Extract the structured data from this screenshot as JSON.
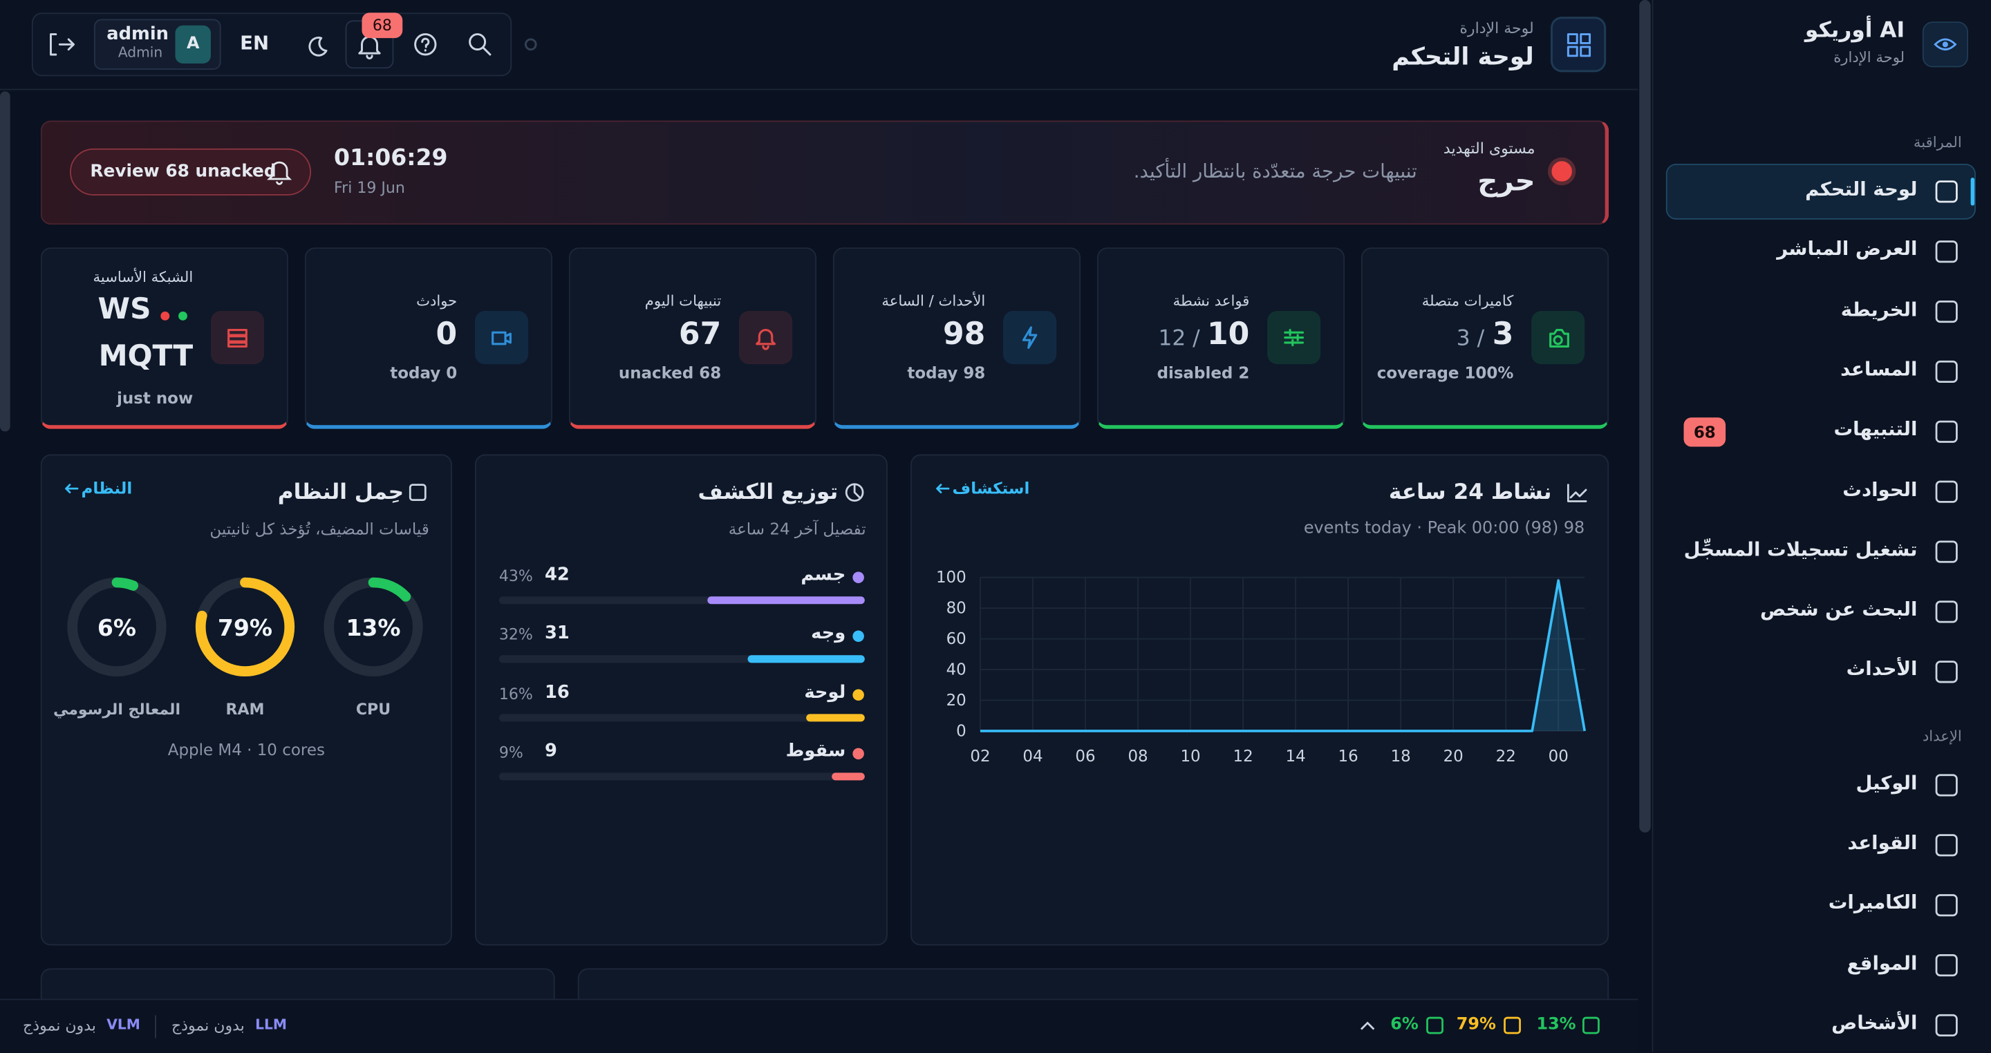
{
  "header": {
    "subtitle": "لوحة الإدارة",
    "title": "لوحة التحكم",
    "user": "admin",
    "role": "Admin",
    "avatar": "A",
    "language": "EN",
    "notification_badge": 68
  },
  "sidebar": {
    "brand": "أوريكو AI",
    "brand_subtitle": "لوحة الإدارة",
    "sections": [
      {
        "title": "المراقبة",
        "items": [
          {
            "label": "لوحة التحكم",
            "active": true
          },
          {
            "label": "العرض المباشر"
          },
          {
            "label": "الخريطة"
          },
          {
            "label": "المساعد"
          },
          {
            "label": "التنبيهات",
            "badge": 68
          },
          {
            "label": "الحوادث"
          },
          {
            "label": "تشغيل تسجيلات المسجِّل"
          },
          {
            "label": "البحث عن شخص"
          },
          {
            "label": "الأحداث"
          }
        ]
      },
      {
        "title": "الإعداد",
        "items": [
          {
            "label": "الوكيل"
          },
          {
            "label": "القواعد"
          },
          {
            "label": "الكاميرات"
          },
          {
            "label": "المواقع"
          },
          {
            "label": "الأشخاص"
          }
        ]
      }
    ]
  },
  "threat": {
    "label": "مستوى التهديد",
    "level": "حرج",
    "message": "تنبيهات حرجة متعدّدة بانتظار التأكيد.",
    "time": "01:06:29",
    "date": "Fri 19 Jun",
    "button": "Review 68 unacked"
  },
  "stats": [
    {
      "label": "كاميرات متصلة",
      "value": 3,
      "total": "/ 3",
      "detail": "coverage 100%",
      "accent": "#22c55e"
    },
    {
      "label": "قواعد نشطة",
      "value": 10,
      "total": "/ 12",
      "detail": "disabled 2",
      "accent": "#22c55e"
    },
    {
      "label": "الأحداث / الساعة",
      "value": 98,
      "detail": "today 98",
      "accent": "#2f8fd8"
    },
    {
      "label": "تنبيهات اليوم",
      "value": 67,
      "detail": "unacked 68",
      "accent": "#e04848"
    },
    {
      "label": "حوادث",
      "value": 0,
      "detail": "today 0",
      "accent": "#2f8fd8"
    },
    {
      "label": "الشبكة الأساسية",
      "lines": [
        "WS",
        "MQTT"
      ],
      "detail": "just now",
      "accent": "#e04848"
    }
  ],
  "activity": {
    "title": "نشاط 24 ساعة",
    "link": "استكشاف",
    "summary": "events today · Peak 00:00 (98) 98",
    "chart": {
      "type": "line",
      "categories": [
        "02",
        null,
        "04",
        null,
        "06",
        null,
        "08",
        null,
        "10",
        null,
        "12",
        null,
        "14",
        null,
        "16",
        null,
        "18",
        null,
        "20",
        null,
        "22",
        null,
        "00",
        null
      ],
      "values": [
        0,
        0,
        0,
        0,
        0,
        0,
        0,
        0,
        0,
        0,
        0,
        0,
        0,
        0,
        0,
        0,
        0,
        0,
        0,
        0,
        0,
        0,
        98,
        0
      ],
      "color": "#38bdf8",
      "ylim": [
        0,
        100
      ],
      "yticks": [
        0,
        20,
        40,
        60,
        80,
        100
      ],
      "grid": true
    }
  },
  "detection": {
    "title": "توزيع الكشف",
    "subtitle": "تفصيل آخر 24 ساعة",
    "items": [
      {
        "name": "جسم",
        "count": 42,
        "percent": 43,
        "percent_label": "43%",
        "color": "#a78bfa"
      },
      {
        "name": "وجه",
        "count": 31,
        "percent": 32,
        "percent_label": "32%",
        "color": "#38bdf8"
      },
      {
        "name": "لوحة",
        "count": 16,
        "percent": 16,
        "percent_label": "16%",
        "color": "#fbbf24"
      },
      {
        "name": "سقوط",
        "count": 9,
        "percent": 9,
        "percent_label": "9%",
        "color": "#f87171"
      }
    ]
  },
  "system": {
    "title": "حِمل النظام",
    "link": "النظام",
    "subtitle": "قياسات المضيف، تُؤخذ كل ثانيتين",
    "gauges": [
      {
        "name": "CPU",
        "value": 13,
        "value_label": "13%",
        "color": "#22c55e"
      },
      {
        "name": "RAM",
        "value": 79,
        "value_label": "79%",
        "color": "#fbbf24"
      },
      {
        "name": "المعالج الرسومي",
        "value": 6,
        "value_label": "6%",
        "color": "#22c55e"
      }
    ],
    "hardware": "Apple M4 · 10 cores"
  },
  "footer": {
    "models": [
      {
        "name": "VLM",
        "status": "بدون نموذج"
      },
      {
        "name": "LLM",
        "status": "بدون نموذج"
      }
    ],
    "resources": [
      {
        "value": "13%",
        "color": "#22c55e"
      },
      {
        "value": "79%",
        "color": "#fbbf24"
      },
      {
        "value": "6%",
        "color": "#22c55e"
      }
    ]
  }
}
